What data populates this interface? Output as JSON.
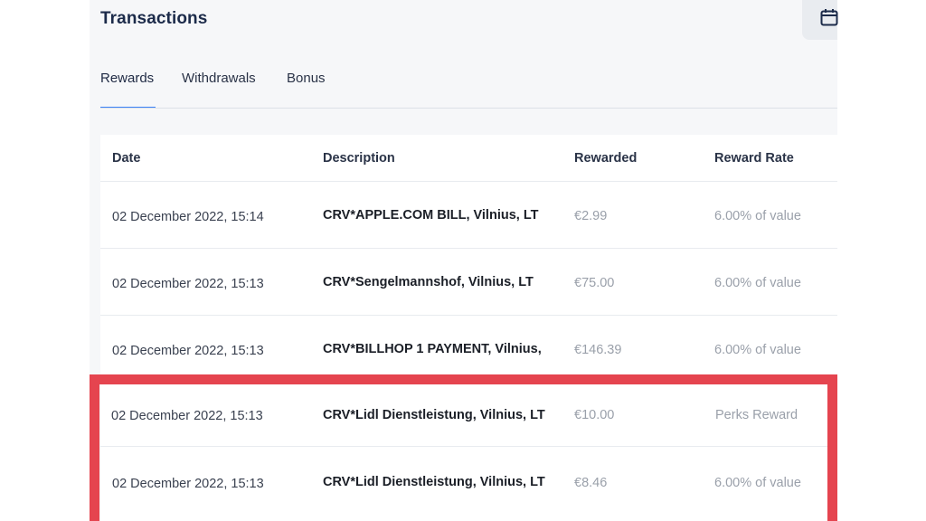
{
  "header": {
    "title": "Transactions"
  },
  "tabs": [
    {
      "label": "Rewards",
      "active": true
    },
    {
      "label": "Withdrawals",
      "active": false
    },
    {
      "label": "Bonus",
      "active": false
    }
  ],
  "table": {
    "columns": [
      "Date",
      "Description",
      "Rewarded",
      "Reward Rate"
    ],
    "rows": [
      {
        "date": "02 December 2022, 15:14",
        "description": "CRV*APPLE.COM BILL, Vilnius, LT",
        "rewarded": "€2.99",
        "rate": "6.00% of value"
      },
      {
        "date": "02 December 2022, 15:13",
        "description": "CRV*Sengelmannshof, Vilnius, LT",
        "rewarded": "€75.00",
        "rate": "6.00% of value"
      },
      {
        "date": "02 December 2022, 15:13",
        "description": "CRV*BILLHOP 1 PAYMENT, Vilnius,",
        "rewarded": "€146.39",
        "rate": "6.00% of value"
      },
      {
        "date": "02 December 2022, 15:13",
        "description": "CRV*Lidl Dienstleistung, Vilnius, LT",
        "rewarded": "€10.00",
        "rate": "Perks Reward"
      },
      {
        "date": "02 December 2022, 15:13",
        "description": "CRV*Lidl Dienstleistung, Vilnius, LT",
        "rewarded": "€8.46",
        "rate": "6.00% of value"
      }
    ]
  },
  "colors": {
    "accent": "#3b82f6",
    "highlight": "#e5444f"
  },
  "icons": {
    "calendar": "calendar-icon"
  }
}
